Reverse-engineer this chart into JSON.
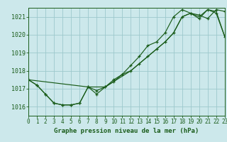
{
  "title": "Graphe pression niveau de la mer (hPa)",
  "bg_color": "#cce8eb",
  "grid_color": "#9dc8cc",
  "line_color": "#1a5c1a",
  "xlim": [
    0,
    23
  ],
  "ylim": [
    1015.5,
    1021.5
  ],
  "yticks": [
    1016,
    1017,
    1018,
    1019,
    1020,
    1021
  ],
  "xticks": [
    0,
    1,
    2,
    3,
    4,
    5,
    6,
    7,
    8,
    9,
    10,
    11,
    12,
    13,
    14,
    15,
    16,
    17,
    18,
    19,
    20,
    21,
    22,
    23
  ],
  "series1": [
    1017.5,
    1017.2,
    1016.7,
    1016.2,
    1016.1,
    1016.1,
    1016.2,
    1017.1,
    1016.7,
    1017.1,
    1017.4,
    1017.8,
    1018.3,
    1018.8,
    1019.4,
    1019.6,
    1020.1,
    1021.0,
    1021.4,
    1021.2,
    1020.9,
    1021.4,
    1021.2,
    1019.9
  ],
  "series2": [
    1017.5,
    1017.2,
    1016.7,
    1016.2,
    1016.1,
    1016.1,
    1016.2,
    1017.1,
    1016.9,
    1017.1,
    1017.5,
    1017.8,
    1018.0,
    1018.4,
    1018.8,
    1019.2,
    1019.6,
    1020.1,
    1021.0,
    1021.2,
    1021.1,
    1020.9,
    1021.4,
    1021.3
  ],
  "series3_x": [
    0,
    7,
    9,
    10,
    11,
    12,
    13,
    14,
    15,
    16,
    17,
    18,
    19,
    20,
    21,
    22,
    23
  ],
  "series3_y": [
    1017.5,
    1017.1,
    1017.1,
    1017.4,
    1017.7,
    1018.0,
    1018.4,
    1018.8,
    1019.2,
    1019.6,
    1020.1,
    1021.0,
    1021.2,
    1021.0,
    1021.4,
    1021.3,
    1019.9
  ]
}
